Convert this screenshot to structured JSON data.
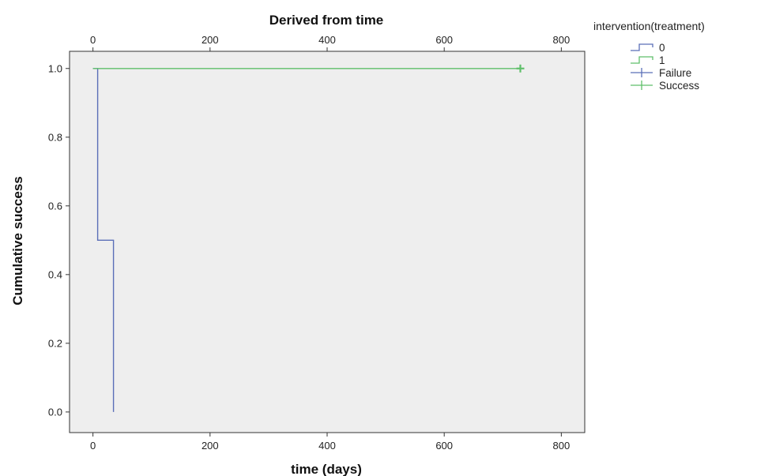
{
  "chart_data": {
    "type": "line",
    "subtype": "kaplan-meier step",
    "title": "",
    "top_axis_label": "Derived from time",
    "xlabel": "time (days)",
    "ylabel": "Cumulative success",
    "xlim": [
      -40,
      840
    ],
    "ylim": [
      -0.06,
      1.05
    ],
    "x_ticks": [
      0,
      200,
      400,
      600,
      800
    ],
    "y_ticks": [
      0.0,
      0.2,
      0.4,
      0.6,
      0.8,
      1.0
    ],
    "y_tick_labels": [
      "0.0",
      "0.2",
      "0.4",
      "0.6",
      "0.8",
      "1.0"
    ],
    "grid": false,
    "plot_background": "#eeeeee",
    "legend": {
      "title": "intervention(treatment)",
      "position": "top-right outside",
      "entries": [
        {
          "label": "0",
          "symbol": "step",
          "color": "#5b6fb8"
        },
        {
          "label": "1",
          "symbol": "step",
          "color": "#5fbf6a"
        },
        {
          "label": "Failure",
          "symbol": "plus",
          "color": "#5b6fb8"
        },
        {
          "label": "Success",
          "symbol": "plus",
          "color": "#5fbf6a"
        }
      ]
    },
    "series": [
      {
        "name": "0",
        "color": "#5b6fb8",
        "steps": [
          [
            0,
            1.0
          ],
          [
            8,
            1.0
          ],
          [
            8,
            0.5
          ],
          [
            35,
            0.5
          ],
          [
            35,
            0.0
          ]
        ],
        "censored": []
      },
      {
        "name": "1",
        "color": "#5fbf6a",
        "steps": [
          [
            0,
            1.0
          ],
          [
            730,
            1.0
          ]
        ],
        "censored": [
          [
            730,
            1.0
          ]
        ]
      }
    ]
  }
}
